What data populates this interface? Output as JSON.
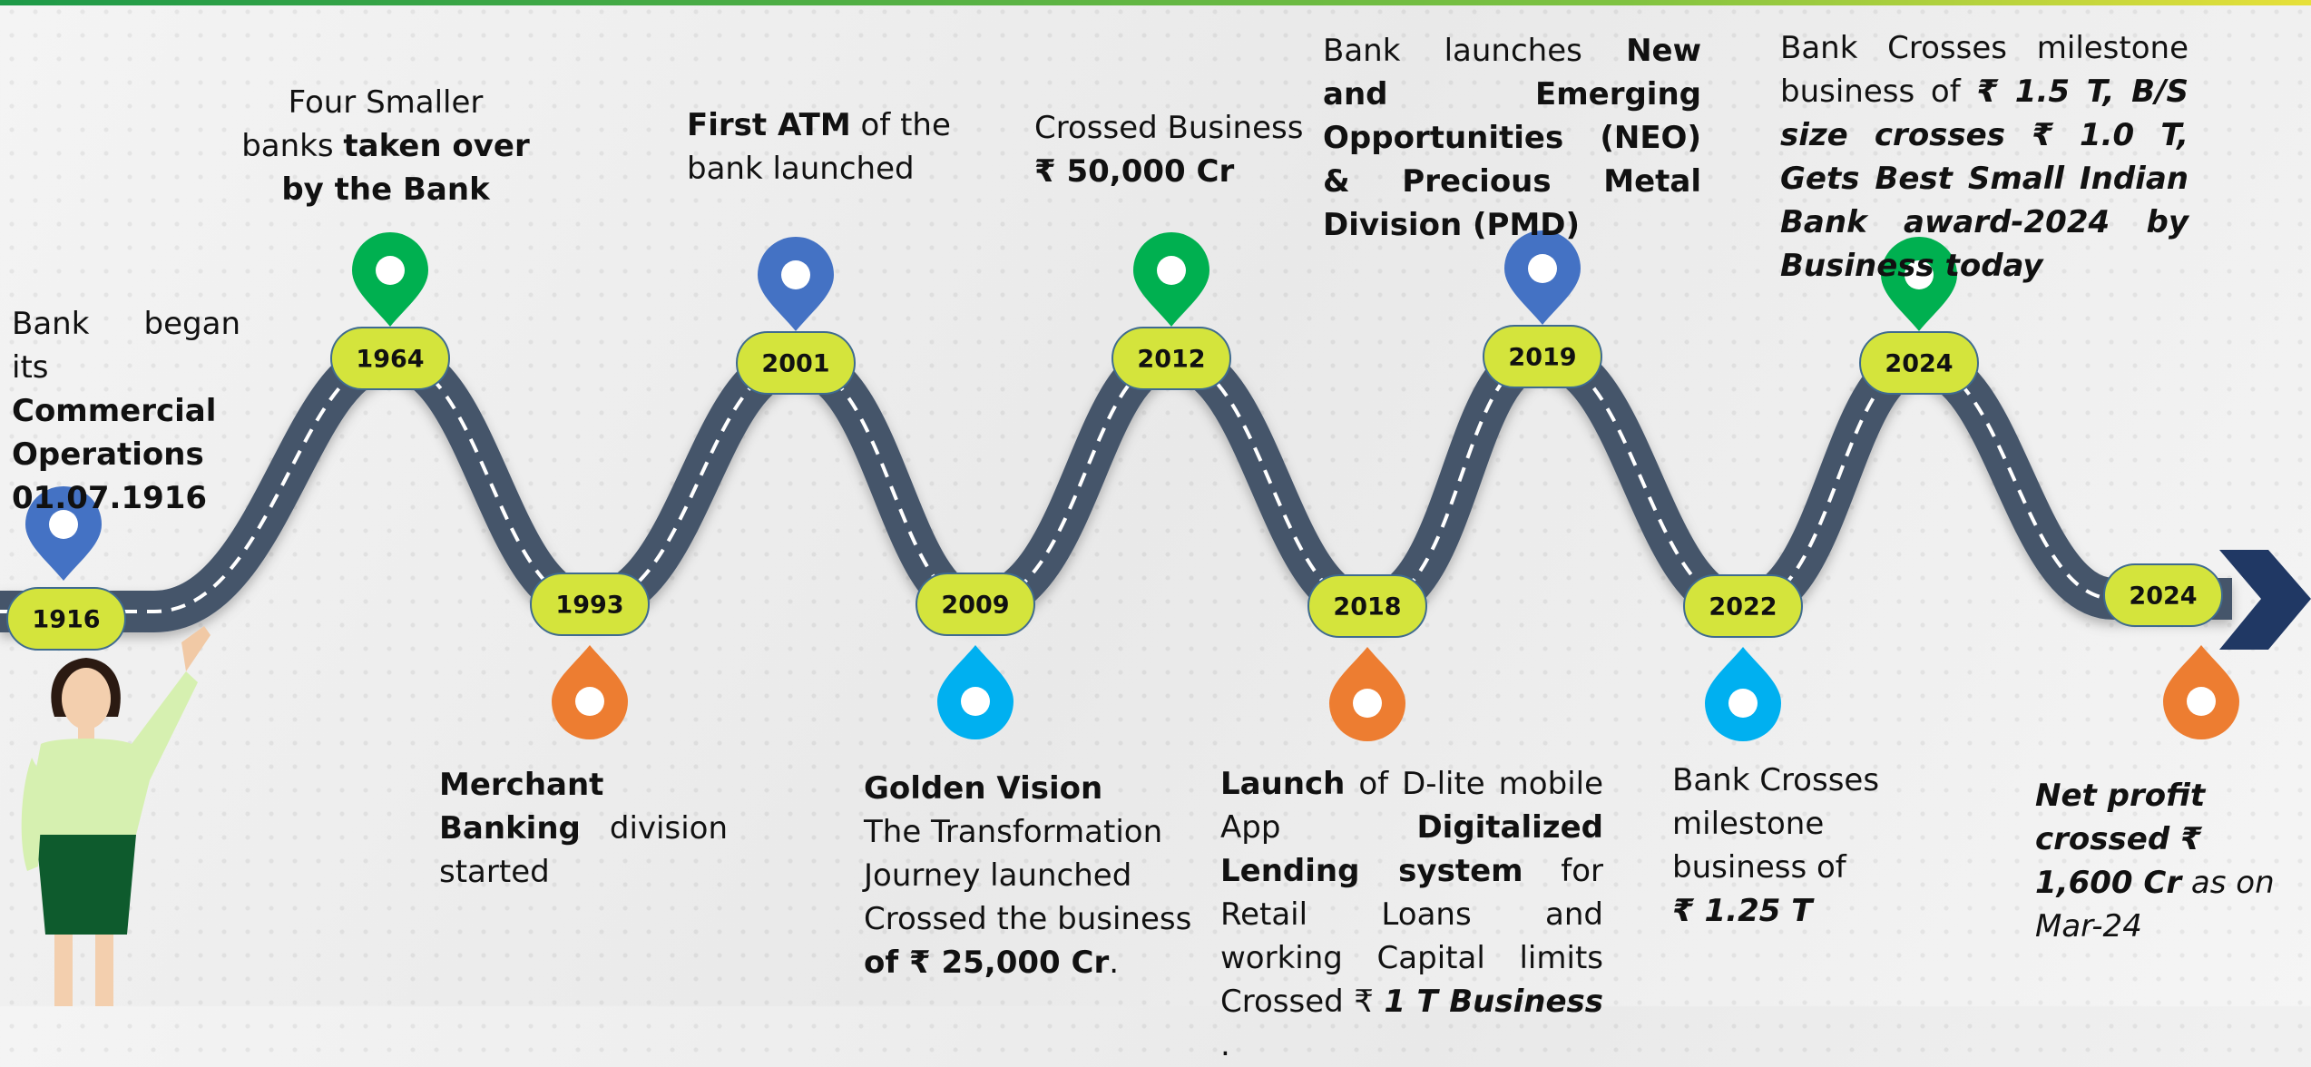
{
  "milestones": [
    {
      "year": "1916",
      "pin_color": "#4472c4",
      "text": [
        "Bank began its",
        "Commercial Operations 01.07.1916"
      ]
    },
    {
      "year": "1964",
      "pin_color": "#00b050",
      "text": [
        "Four Smaller",
        "banks",
        "taken over",
        "by the Bank"
      ]
    },
    {
      "year": "1993",
      "pin_color": "#ed7d31",
      "text": [
        "Merchant Banking",
        "division started"
      ]
    },
    {
      "year": "2001",
      "pin_color": "#4472c4",
      "text": [
        "First ATM",
        "of the",
        "bank launched"
      ]
    },
    {
      "year": "2009",
      "pin_color": "#00b0f0",
      "text": [
        "Golden Vision",
        "The Transformation",
        "Journey launched",
        "Crossed the business",
        "of ₹ 25,000 Cr",
        "."
      ]
    },
    {
      "year": "2012",
      "pin_color": "#00b050",
      "text": [
        "Crossed Business",
        "₹ 50,000 Cr"
      ]
    },
    {
      "year": "2018",
      "pin_color": "#ed7d31",
      "text": [
        "Launch",
        "of D-lite mobile App",
        "Digitalized Lending system",
        "for Retail Loans and working Capital limits Crossed ₹",
        "1 T Business",
        "."
      ]
    },
    {
      "year": "2019",
      "pin_color": "#4472c4",
      "text": [
        "Bank launches",
        "New and Emerging Opportunities (NEO) & Precious Metal Division (PMD)"
      ]
    },
    {
      "year": "2022",
      "pin_color": "#00b0f0",
      "text": [
        "Bank Crosses",
        "milestone",
        "business of",
        "₹ 1.25 T"
      ]
    },
    {
      "year": "2024",
      "pin_color": "#00b050",
      "text": [
        "Bank Crosses milestone business of",
        "₹ 1.5 T, B/S size crosses ₹ 1.0 T, Gets Best Small Indian Bank award-2024 by Business today"
      ]
    },
    {
      "year": "2024",
      "pin_color": "#ed7d31",
      "text": [
        "Net profit crossed ₹ 1,600 Cr",
        "as on Mar-24"
      ]
    }
  ]
}
